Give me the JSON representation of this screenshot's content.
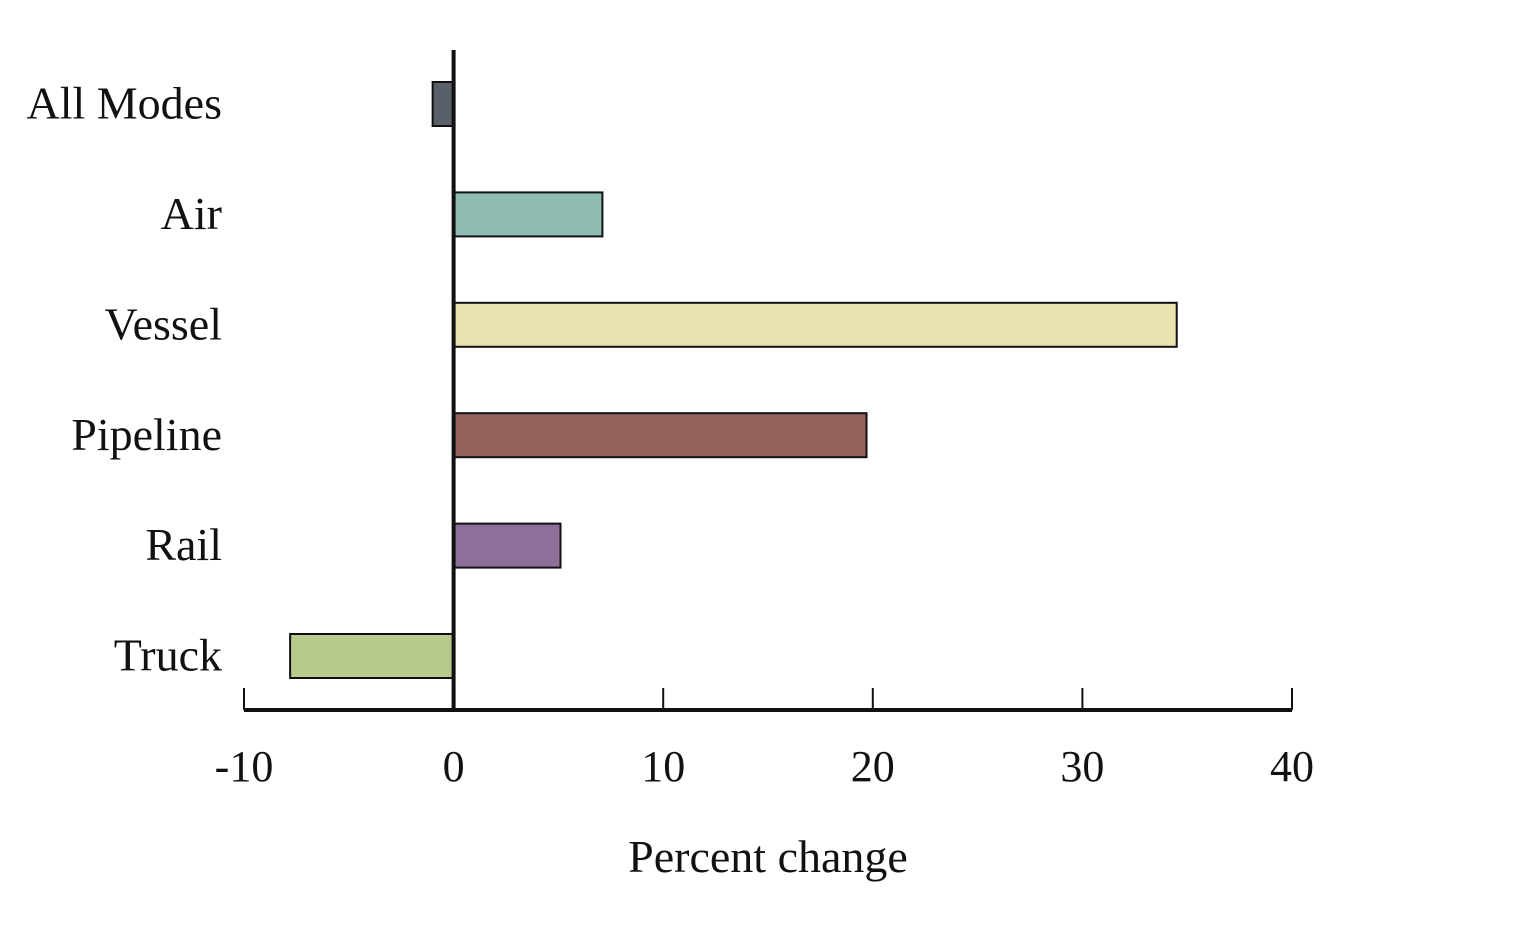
{
  "chart_data": {
    "type": "bar",
    "orientation": "horizontal",
    "categories": [
      "All Modes",
      "Air",
      "Vessel",
      "Pipeline",
      "Rail",
      "Truck"
    ],
    "values": [
      -1.0,
      7.1,
      34.5,
      19.7,
      5.1,
      -7.8
    ],
    "colors": [
      "#5a6069",
      "#8fbcb2",
      "#e8e2ae",
      "#93635c",
      "#8f6f9a",
      "#b8c98c"
    ],
    "xlabel": "Percent change",
    "ylabel": "",
    "xlim": [
      -10,
      40
    ],
    "xticks": [
      -10,
      0,
      10,
      20,
      30,
      40
    ],
    "xtick_labels": [
      "-10",
      "0",
      "10",
      "20",
      "30",
      "40"
    ],
    "grid": false,
    "legend": "none"
  }
}
